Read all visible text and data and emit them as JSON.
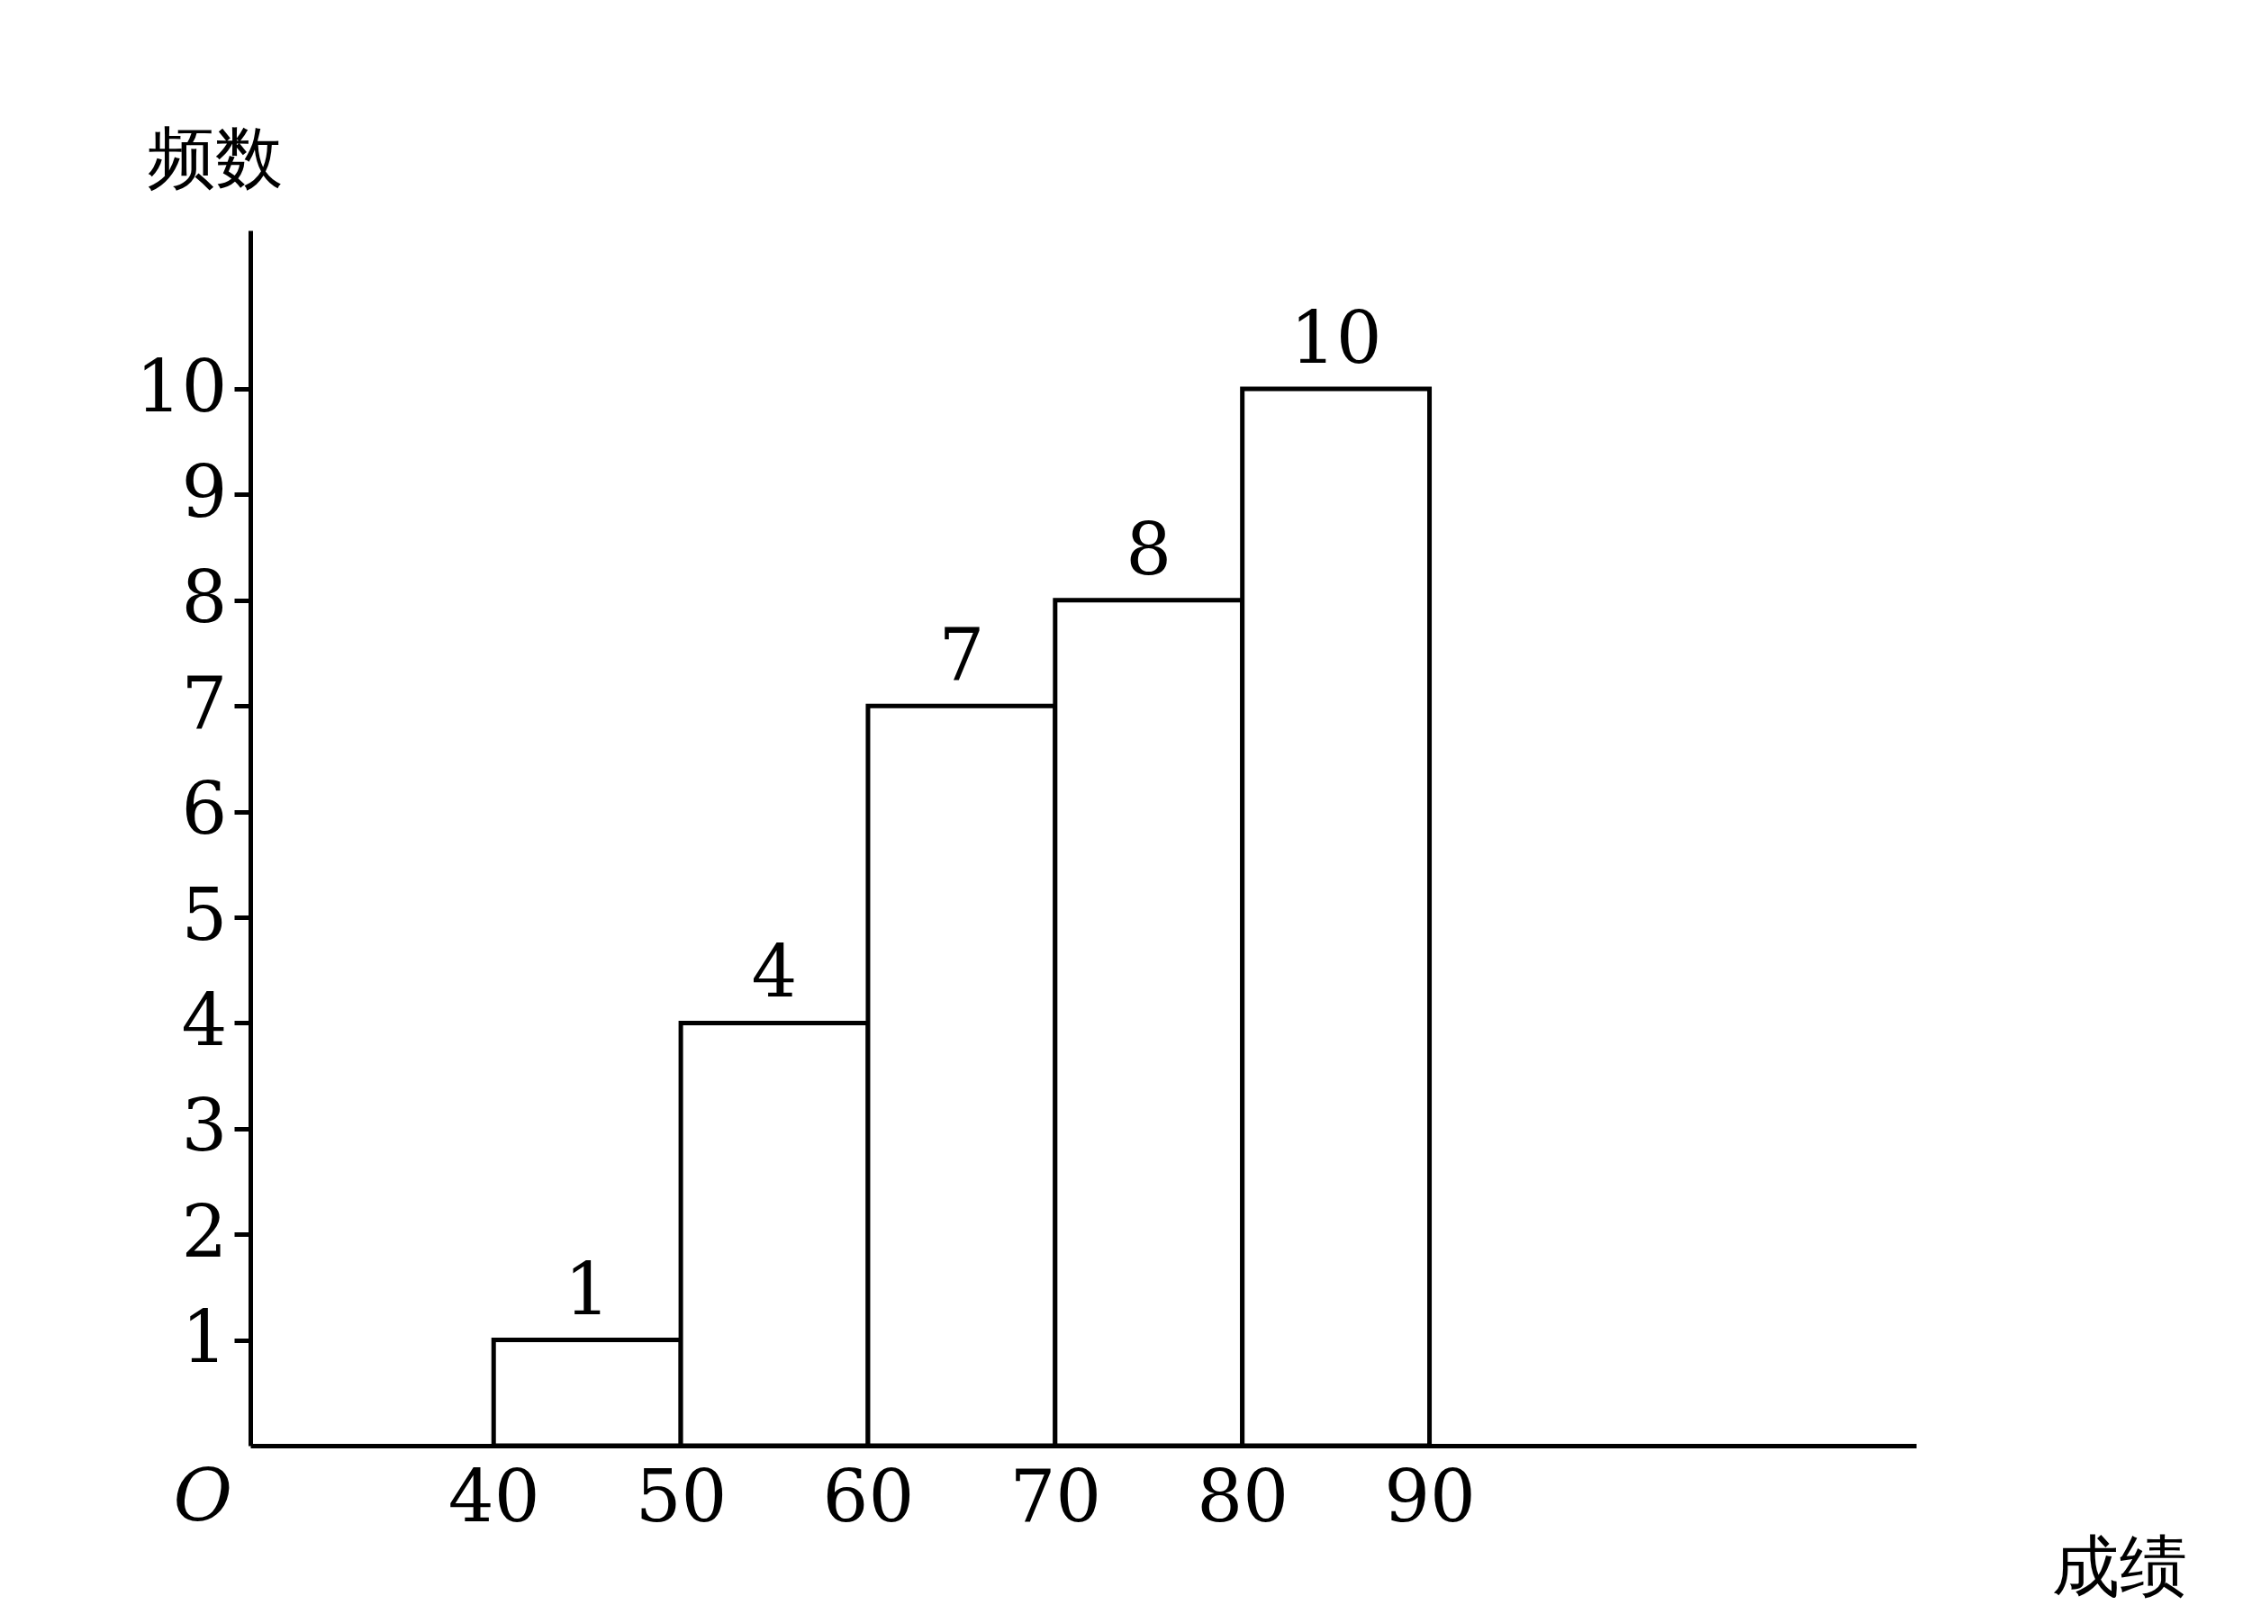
{
  "chart_data": {
    "type": "histogram",
    "xlabel": "成绩",
    "ylabel": "频数",
    "bins": [
      40,
      50,
      60,
      70,
      80,
      90
    ],
    "values": [
      1,
      4,
      7,
      8,
      10
    ],
    "color": "#ffffff",
    "xlim": [
      27,
      116
    ],
    "xticks": [
      40,
      50,
      60,
      70,
      80,
      90
    ],
    "ylim": [
      0,
      11.5
    ],
    "yticks": [
      1,
      2,
      3,
      4,
      5,
      6,
      7,
      8,
      9,
      10
    ],
    "annotations": [
      "O"
    ],
    "data_labels": true
  }
}
